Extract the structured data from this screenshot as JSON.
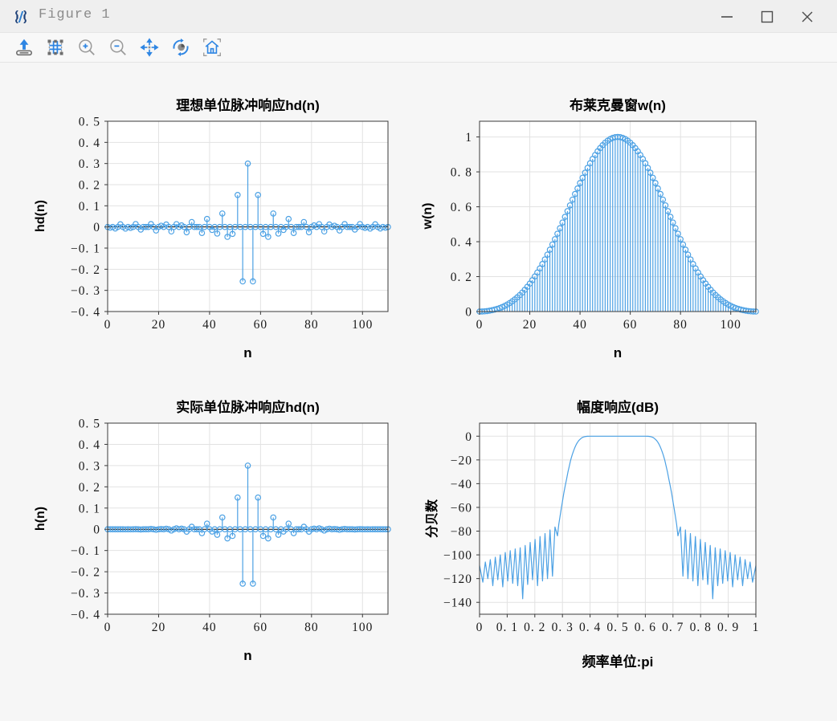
{
  "window": {
    "title": "Figure 1",
    "controls": [
      {
        "name": "minimize"
      },
      {
        "name": "maximize"
      },
      {
        "name": "close"
      }
    ]
  },
  "toolbar": {
    "icons": [
      "export-image",
      "configure-subplots",
      "zoom-in",
      "zoom-out",
      "pan",
      "rotate-view",
      "home"
    ]
  },
  "colors": {
    "accent_blue": "#4CA1E4",
    "icon_blue": "#2f86e3",
    "icon_gray": "#8f8f8f",
    "grid": "#e2e2e2",
    "spine": "#3a3a3a",
    "stem_baseline": "#000000",
    "titlebar_bg": "#efefef",
    "toolbar_bg": "#f8f8f8",
    "canvas_bg": "#f6f6f6",
    "plot_bg": "#ffffff",
    "titlebar_text": "#8b8b8b"
  },
  "chart_data": [
    {
      "type": "stem",
      "title": "理想单位脉冲响应hd(n)",
      "xlabel": "n",
      "ylabel": "hd(n)",
      "xlim": [
        0,
        110
      ],
      "ylim": [
        -0.4,
        0.5
      ],
      "xticks": [
        0,
        20,
        40,
        60,
        80,
        100
      ],
      "xtick_labels": [
        "0",
        "20",
        "40",
        "60",
        "80",
        "100"
      ],
      "yticks": [
        0.5,
        0.4,
        0.3,
        0.2,
        0.1,
        0,
        -0.1,
        -0.2,
        -0.3,
        -0.4
      ],
      "ytick_labels": [
        "0. 5",
        "0. 4",
        "0. 3",
        "0. 2",
        "0. 1",
        "0",
        "−0. 1",
        "−0. 2",
        "−0. 3",
        "−0. 4"
      ],
      "grid": true,
      "values": [
        0,
        -0.0036,
        0,
        -0.0072,
        0,
        0.0127,
        0,
        -0.0078,
        0,
        -0.0043,
        0,
        0.0138,
        0,
        -0.0123,
        0,
        0,
        0,
        0.0136,
        0,
        -0.0168,
        0,
        0.0058,
        0,
        0.0117,
        0,
        -0.0212,
        0,
        0.0134,
        0,
        0.0076,
        0,
        -0.0252,
        0,
        0.0234,
        0,
        0,
        0,
        -0.0286,
        0,
        0.0378,
        0,
        -0.0141,
        0,
        -0.0312,
        0,
        0.0637,
        0,
        -0.0468,
        0,
        -0.0328,
        0,
        0.1514,
        0,
        -0.2575,
        0,
        0.3,
        0,
        -0.2575,
        0,
        0.1514,
        0,
        -0.0328,
        0,
        -0.0468,
        0,
        0.0637,
        0,
        -0.0312,
        0,
        -0.0141,
        0,
        0.0378,
        0,
        -0.0286,
        0,
        0,
        0,
        0.0234,
        0,
        -0.0252,
        0,
        0.0076,
        0,
        0.0134,
        0,
        -0.0212,
        0,
        0.0117,
        0,
        0.0058,
        0,
        -0.0168,
        0,
        0.0136,
        0,
        0,
        0,
        -0.0123,
        0,
        0.0138,
        0,
        -0.0043,
        0,
        -0.0078,
        0,
        0.0127,
        0,
        -0.0072,
        0,
        -0.0036,
        0
      ]
    },
    {
      "type": "stem",
      "title": "布莱克曼窗w(n)",
      "xlabel": "n",
      "ylabel": "w(n)",
      "xlim": [
        0,
        110
      ],
      "ylim": [
        0,
        1.09
      ],
      "xticks": [
        0,
        20,
        40,
        60,
        80,
        100
      ],
      "xtick_labels": [
        "0",
        "20",
        "40",
        "60",
        "80",
        "100"
      ],
      "yticks": [
        1,
        0.8,
        0.6,
        0.4,
        0.2,
        0
      ],
      "ytick_labels": [
        "1",
        "0. 8",
        "0. 6",
        "0. 4",
        "0. 2",
        "0"
      ],
      "grid": true,
      "values": [
        0,
        0.0003,
        0.0012,
        0.0027,
        0.0048,
        0.0076,
        0.011,
        0.0152,
        0.0201,
        0.0259,
        0.0326,
        0.0402,
        0.0488,
        0.0585,
        0.0693,
        0.0812,
        0.0942,
        0.1086,
        0.1244,
        0.1416,
        0.1599,
        0.1797,
        0.2008,
        0.2232,
        0.247,
        0.2721,
        0.2984,
        0.3259,
        0.3544,
        0.384,
        0.4144,
        0.4456,
        0.4775,
        0.5098,
        0.5424,
        0.5753,
        0.6081,
        0.641,
        0.6733,
        0.7051,
        0.7361,
        0.7662,
        0.7952,
        0.8229,
        0.8492,
        0.8739,
        0.8967,
        0.9176,
        0.9363,
        0.9529,
        0.967,
        0.9788,
        0.988,
        0.9947,
        0.9987,
        1,
        0.9987,
        0.9947,
        0.988,
        0.9788,
        0.967,
        0.9529,
        0.9363,
        0.9176,
        0.8967,
        0.8739,
        0.8492,
        0.8229,
        0.7952,
        0.7662,
        0.7361,
        0.7051,
        0.6733,
        0.641,
        0.6081,
        0.5753,
        0.5424,
        0.5098,
        0.4775,
        0.4456,
        0.4144,
        0.384,
        0.3544,
        0.3259,
        0.2984,
        0.2721,
        0.247,
        0.2232,
        0.2008,
        0.1797,
        0.1599,
        0.1416,
        0.1244,
        0.1086,
        0.0942,
        0.0812,
        0.0693,
        0.0585,
        0.0488,
        0.0402,
        0.0326,
        0.0259,
        0.0201,
        0.0152,
        0.011,
        0.0076,
        0.0048,
        0.0027,
        0.0012,
        0.0003,
        0
      ]
    },
    {
      "type": "stem",
      "title": "实际单位脉冲响应hd(n)",
      "xlabel": "n",
      "ylabel": "h(n)",
      "xlim": [
        0,
        110
      ],
      "ylim": [
        -0.4,
        0.5
      ],
      "xticks": [
        0,
        20,
        40,
        60,
        80,
        100
      ],
      "xtick_labels": [
        "0",
        "20",
        "40",
        "60",
        "80",
        "100"
      ],
      "yticks": [
        0.5,
        0.4,
        0.3,
        0.2,
        0.1,
        0,
        -0.1,
        -0.2,
        -0.3,
        -0.4
      ],
      "ytick_labels": [
        "0. 5",
        "0. 4",
        "0. 3",
        "0. 2",
        "0. 1",
        "0",
        "−0. 1",
        "−0. 2",
        "−0. 3",
        "−0. 4"
      ],
      "grid": true,
      "values": [
        0,
        0,
        0,
        0,
        0,
        0.0001,
        0,
        -0.0001,
        0,
        -0.0001,
        0,
        0.0006,
        0,
        -0.0007,
        0,
        0,
        0,
        0.0015,
        0,
        -0.0024,
        0,
        0.001,
        0,
        0.0026,
        0,
        -0.0058,
        0,
        0.0044,
        0,
        0.0029,
        0,
        -0.0112,
        0,
        0.0119,
        0,
        0,
        0,
        -0.0183,
        0,
        0.0267,
        0,
        -0.0108,
        0,
        -0.0257,
        0,
        0.0557,
        0,
        -0.0429,
        0,
        -0.0313,
        0,
        0.1496,
        0,
        -0.2561,
        0,
        0.3,
        0,
        -0.2561,
        0,
        0.1496,
        0,
        -0.0313,
        0,
        -0.0429,
        0,
        0.0557,
        0,
        -0.0257,
        0,
        -0.0108,
        0,
        0.0267,
        0,
        -0.0183,
        0,
        0,
        0,
        0.0119,
        0,
        -0.0112,
        0,
        0.0029,
        0,
        0.0044,
        0,
        -0.0058,
        0,
        0.0026,
        0,
        0.001,
        0,
        -0.0024,
        0,
        0.0015,
        0,
        0,
        0,
        -0.0007,
        0,
        0.0006,
        0,
        -0.0001,
        0,
        -0.0001,
        0,
        0.0001,
        0,
        0,
        0,
        0,
        0
      ]
    },
    {
      "type": "line",
      "title": "幅度响应(dB)",
      "xlabel": "频率单位:pi",
      "ylabel": "分贝数",
      "xlim": [
        0,
        1
      ],
      "ylim": [
        -150,
        11
      ],
      "xticks": [
        0,
        0.1,
        0.2,
        0.3,
        0.4,
        0.5,
        0.6,
        0.7,
        0.8,
        0.9,
        1
      ],
      "xtick_labels": [
        "0",
        "0. 1",
        "0. 2",
        "0. 3",
        "0. 4",
        "0. 5",
        "0. 6",
        "0. 7",
        "0. 8",
        "0. 9",
        "1"
      ],
      "yticks": [
        0,
        -20,
        -40,
        -60,
        -80,
        -100,
        -120,
        -140
      ],
      "ytick_labels": [
        "0",
        "−20",
        "−40",
        "−60",
        "−80",
        "−100",
        "−120",
        "−140"
      ],
      "grid": true,
      "points": [
        [
          0,
          -109
        ],
        [
          0.012,
          -123
        ],
        [
          0.021,
          -106
        ],
        [
          0.03,
          -120
        ],
        [
          0.039,
          -104
        ],
        [
          0.048,
          -126
        ],
        [
          0.057,
          -102
        ],
        [
          0.066,
          -121
        ],
        [
          0.075,
          -100
        ],
        [
          0.084,
          -127
        ],
        [
          0.093,
          -98
        ],
        [
          0.102,
          -122
        ],
        [
          0.111,
          -96.5
        ],
        [
          0.12,
          -124
        ],
        [
          0.129,
          -95
        ],
        [
          0.138,
          -126
        ],
        [
          0.147,
          -94
        ],
        [
          0.156,
          -137
        ],
        [
          0.165,
          -92
        ],
        [
          0.174,
          -125
        ],
        [
          0.183,
          -89.5
        ],
        [
          0.192,
          -121
        ],
        [
          0.201,
          -87
        ],
        [
          0.21,
          -126
        ],
        [
          0.219,
          -84.5
        ],
        [
          0.228,
          -122
        ],
        [
          0.237,
          -82
        ],
        [
          0.246,
          -120
        ],
        [
          0.255,
          -79
        ],
        [
          0.264,
          -118
        ],
        [
          0.273,
          -76.5
        ],
        [
          0.282,
          -84
        ],
        [
          0.287,
          -74
        ],
        [
          0.295,
          -62
        ],
        [
          0.3,
          -55
        ],
        [
          0.305,
          -48
        ],
        [
          0.31,
          -42
        ],
        [
          0.315,
          -36
        ],
        [
          0.32,
          -30
        ],
        [
          0.325,
          -25
        ],
        [
          0.33,
          -20
        ],
        [
          0.335,
          -16
        ],
        [
          0.34,
          -12.5
        ],
        [
          0.345,
          -9.5
        ],
        [
          0.35,
          -7
        ],
        [
          0.355,
          -5
        ],
        [
          0.36,
          -3.5
        ],
        [
          0.365,
          -2.3
        ],
        [
          0.37,
          -1.4
        ],
        [
          0.375,
          -0.8
        ],
        [
          0.38,
          -0.4
        ],
        [
          0.39,
          -0.1
        ],
        [
          0.4,
          0
        ],
        [
          0.45,
          0
        ],
        [
          0.5,
          0
        ],
        [
          0.55,
          0
        ],
        [
          0.6,
          0
        ],
        [
          0.61,
          -0.1
        ],
        [
          0.62,
          -0.4
        ],
        [
          0.625,
          -0.8
        ],
        [
          0.63,
          -1.4
        ],
        [
          0.635,
          -2.3
        ],
        [
          0.64,
          -3.5
        ],
        [
          0.645,
          -5
        ],
        [
          0.65,
          -7
        ],
        [
          0.655,
          -9.5
        ],
        [
          0.66,
          -12.5
        ],
        [
          0.665,
          -16
        ],
        [
          0.67,
          -20
        ],
        [
          0.675,
          -25
        ],
        [
          0.68,
          -30
        ],
        [
          0.685,
          -36
        ],
        [
          0.69,
          -42
        ],
        [
          0.695,
          -48
        ],
        [
          0.7,
          -55
        ],
        [
          0.705,
          -62
        ],
        [
          0.713,
          -74
        ],
        [
          0.718,
          -84
        ],
        [
          0.727,
          -76.5
        ],
        [
          0.736,
          -118
        ],
        [
          0.745,
          -79
        ],
        [
          0.754,
          -120
        ],
        [
          0.763,
          -82
        ],
        [
          0.772,
          -122
        ],
        [
          0.781,
          -84.5
        ],
        [
          0.79,
          -126
        ],
        [
          0.799,
          -87
        ],
        [
          0.808,
          -121
        ],
        [
          0.817,
          -89.5
        ],
        [
          0.826,
          -125
        ],
        [
          0.835,
          -92
        ],
        [
          0.844,
          -137
        ],
        [
          0.853,
          -94
        ],
        [
          0.862,
          -126
        ],
        [
          0.871,
          -95
        ],
        [
          0.88,
          -124
        ],
        [
          0.889,
          -96.5
        ],
        [
          0.898,
          -122
        ],
        [
          0.907,
          -98
        ],
        [
          0.916,
          -127
        ],
        [
          0.925,
          -100
        ],
        [
          0.934,
          -121
        ],
        [
          0.943,
          -102
        ],
        [
          0.952,
          -126
        ],
        [
          0.961,
          -104
        ],
        [
          0.97,
          -120
        ],
        [
          0.979,
          -106
        ],
        [
          0.988,
          -123
        ],
        [
          1,
          -109
        ]
      ]
    }
  ]
}
